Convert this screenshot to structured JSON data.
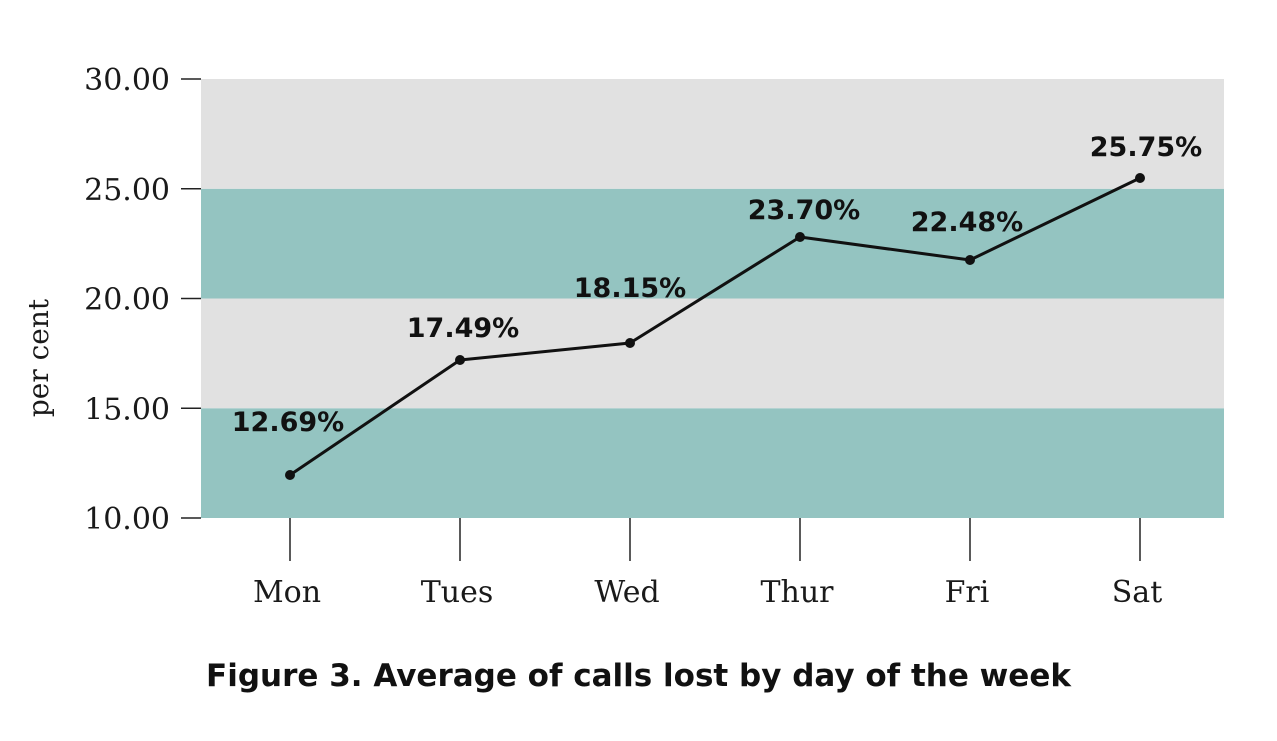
{
  "caption": "Figure 3. Average of calls lost by day of the week",
  "chart_data": {
    "type": "line",
    "title": "",
    "xlabel": "",
    "ylabel": "per cent",
    "categories": [
      "Mon",
      "Tues",
      "Wed",
      "Thur",
      "Fri",
      "Sat"
    ],
    "series": [
      {
        "values": [
          12.69,
          17.49,
          18.15,
          23.7,
          22.48,
          25.75
        ]
      }
    ],
    "data_labels": [
      "12.69%",
      "17.49%",
      "18.15%",
      "23.70%",
      "22.48%",
      "25.75%"
    ],
    "ylim": [
      10,
      30
    ],
    "yticks": [
      10,
      15,
      20,
      25,
      30
    ],
    "ytick_labels": [
      "10.00",
      "15.00",
      "20.00",
      "25.00",
      "30.00"
    ],
    "band_colors": [
      "#94c4c1",
      "#e1e1e1",
      "#94c4c1",
      "#e1e1e1"
    ],
    "line_color": "#111111",
    "grid": false,
    "legend": "none"
  }
}
